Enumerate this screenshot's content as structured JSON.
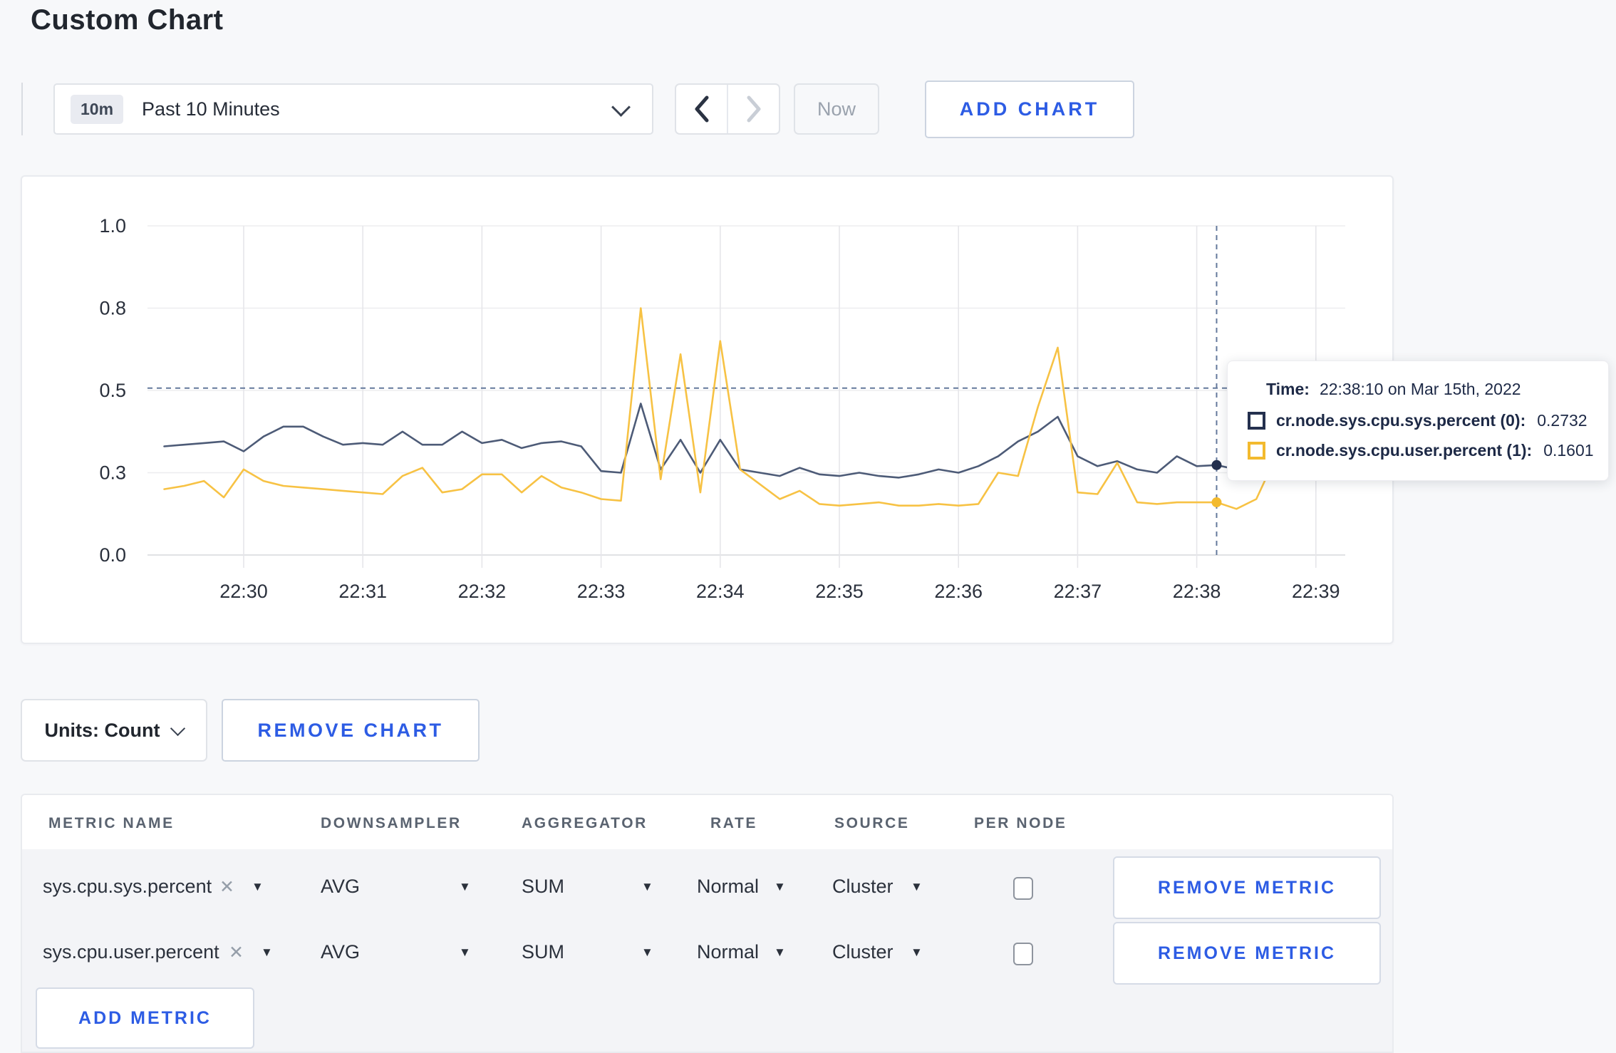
{
  "page": {
    "title": "Custom Chart"
  },
  "toolbar": {
    "range_badge": "10m",
    "range_label": "Past 10 Minutes",
    "now_label": "Now",
    "add_chart_label": "ADD CHART"
  },
  "chart_footer": {
    "units_label": "Units: Count",
    "remove_chart_label": "REMOVE CHART"
  },
  "icons": {
    "clear": "✕",
    "caret_down": "▼"
  },
  "metrics_table": {
    "headers": [
      "METRIC NAME",
      "DOWNSAMPLER",
      "AGGREGATOR",
      "RATE",
      "SOURCE",
      "PER NODE"
    ],
    "rows": [
      {
        "metric": "sys.cpu.sys.percent",
        "downsampler": "AVG",
        "aggregator": "SUM",
        "rate": "Normal",
        "source": "Cluster",
        "per_node_checked": false,
        "remove_label": "REMOVE METRIC"
      },
      {
        "metric": "sys.cpu.user.percent",
        "downsampler": "AVG",
        "aggregator": "SUM",
        "rate": "Normal",
        "source": "Cluster",
        "per_node_checked": false,
        "remove_label": "REMOVE METRIC"
      }
    ],
    "add_metric_label": "ADD METRIC"
  },
  "chart_data": {
    "type": "line",
    "title": "",
    "xlabel": "",
    "ylabel": "",
    "ylim": [
      0,
      1
    ],
    "grid": true,
    "legend_position": "tooltip",
    "x_start": "22:29:20",
    "x_step_seconds": 10,
    "x_ticks": [
      "22:30",
      "22:31",
      "22:32",
      "22:33",
      "22:34",
      "22:35",
      "22:36",
      "22:37",
      "22:38",
      "22:39"
    ],
    "y_ticks": [
      0,
      0.25,
      0.5,
      0.75,
      1.0
    ],
    "y_tick_labels": [
      "0.0",
      "0.3",
      "0.5",
      "0.8",
      "1.0"
    ],
    "series": [
      {
        "name": "cr.node.sys.cpu.sys.percent (0)",
        "color": "#4d5b77",
        "swatch": "#24304e",
        "values": [
          0.33,
          0.335,
          0.34,
          0.345,
          0.315,
          0.36,
          0.39,
          0.39,
          0.36,
          0.335,
          0.34,
          0.335,
          0.375,
          0.335,
          0.335,
          0.375,
          0.34,
          0.35,
          0.325,
          0.34,
          0.345,
          0.33,
          0.255,
          0.25,
          0.46,
          0.26,
          0.35,
          0.25,
          0.35,
          0.26,
          0.25,
          0.24,
          0.265,
          0.245,
          0.24,
          0.25,
          0.24,
          0.235,
          0.245,
          0.26,
          0.25,
          0.27,
          0.3,
          0.345,
          0.375,
          0.42,
          0.3,
          0.27,
          0.285,
          0.26,
          0.25,
          0.3,
          0.27,
          0.2732,
          0.26,
          0.29,
          0.3,
          0.295,
          0.3
        ]
      },
      {
        "name": "cr.node.sys.cpu.user.percent (1)",
        "color": "#f7c244",
        "swatch": "#f3ba2e",
        "values": [
          0.2,
          0.21,
          0.225,
          0.175,
          0.26,
          0.225,
          0.21,
          0.205,
          0.2,
          0.195,
          0.19,
          0.185,
          0.24,
          0.265,
          0.19,
          0.2,
          0.245,
          0.245,
          0.19,
          0.24,
          0.205,
          0.19,
          0.17,
          0.165,
          0.75,
          0.23,
          0.61,
          0.19,
          0.65,
          0.26,
          0.215,
          0.17,
          0.195,
          0.155,
          0.15,
          0.155,
          0.16,
          0.15,
          0.15,
          0.155,
          0.15,
          0.155,
          0.25,
          0.24,
          0.45,
          0.63,
          0.19,
          0.185,
          0.28,
          0.16,
          0.155,
          0.16,
          0.16,
          0.1601,
          0.14,
          0.17,
          0.3,
          0.305,
          0.25
        ]
      }
    ],
    "crosshair": {
      "time": "22:38:10",
      "y_value": 0.507
    },
    "tooltip": {
      "time_label": "Time:",
      "time_value": "22:38:10 on Mar 15th, 2022",
      "rows": [
        {
          "label": "cr.node.sys.cpu.sys.percent (0):",
          "value": "0.2732"
        },
        {
          "label": "cr.node.sys.cpu.user.percent (1):",
          "value": "0.1601"
        }
      ]
    }
  }
}
